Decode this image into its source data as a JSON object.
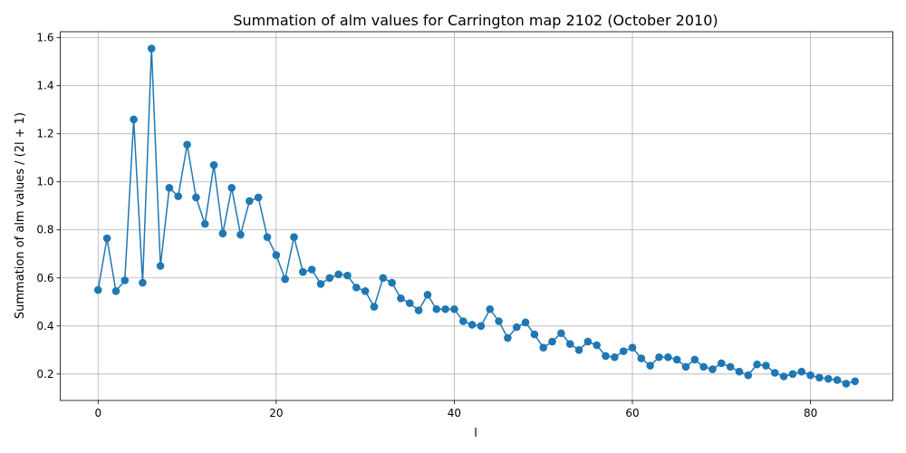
{
  "chart_data": {
    "type": "line",
    "title": "Summation of alm values for Carrington map 2102 (October 2010)",
    "xlabel": "l",
    "ylabel": "Summation of alm values / (2l + 1)",
    "xlim": [
      -4.25,
      89.25
    ],
    "ylim": [
      0.09,
      1.625
    ],
    "xticks": [
      0,
      20,
      40,
      60,
      80
    ],
    "yticks": [
      0.2,
      0.4,
      0.6,
      0.8,
      1.0,
      1.2,
      1.4,
      1.6
    ],
    "xtick_labels": [
      "0",
      "20",
      "40",
      "60",
      "80"
    ],
    "ytick_labels": [
      "0.2",
      "0.4",
      "0.6",
      "0.8",
      "1.0",
      "1.2",
      "1.4",
      "1.6"
    ],
    "grid": true,
    "marker": "circle",
    "color": "#1f77b4",
    "series": [
      {
        "x": [
          0,
          1,
          2,
          3,
          4,
          5,
          6,
          7,
          8,
          9,
          10,
          11,
          12,
          13,
          14,
          15,
          16,
          17,
          18,
          19,
          20,
          21,
          22,
          23,
          24,
          25,
          26,
          27,
          28,
          29,
          30,
          31,
          32,
          33,
          34,
          35,
          36,
          37,
          38,
          39,
          40,
          41,
          42,
          43,
          44,
          45,
          46,
          47,
          48,
          49,
          50,
          51,
          52,
          53,
          54,
          55,
          56,
          57,
          58,
          59,
          60,
          61,
          62,
          63,
          64,
          65,
          66,
          67,
          68,
          69,
          70,
          71,
          72,
          73,
          74,
          75,
          76,
          77,
          78,
          79,
          80,
          81,
          82,
          83,
          84,
          85
        ],
        "values": [
          0.55,
          0.765,
          0.545,
          0.59,
          1.26,
          0.58,
          1.555,
          0.65,
          0.975,
          0.94,
          1.155,
          0.935,
          0.825,
          1.07,
          0.785,
          0.975,
          0.78,
          0.92,
          0.935,
          0.77,
          0.695,
          0.595,
          0.77,
          0.625,
          0.635,
          0.575,
          0.6,
          0.615,
          0.61,
          0.56,
          0.545,
          0.48,
          0.6,
          0.58,
          0.515,
          0.495,
          0.465,
          0.53,
          0.47,
          0.47,
          0.47,
          0.42,
          0.405,
          0.4,
          0.47,
          0.42,
          0.35,
          0.395,
          0.415,
          0.365,
          0.31,
          0.335,
          0.37,
          0.325,
          0.3,
          0.335,
          0.32,
          0.275,
          0.27,
          0.295,
          0.31,
          0.265,
          0.235,
          0.27,
          0.27,
          0.26,
          0.23,
          0.26,
          0.23,
          0.22,
          0.245,
          0.23,
          0.21,
          0.195,
          0.24,
          0.235,
          0.205,
          0.19,
          0.2,
          0.21,
          0.195,
          0.185,
          0.18,
          0.175,
          0.16,
          0.17
        ]
      }
    ]
  }
}
